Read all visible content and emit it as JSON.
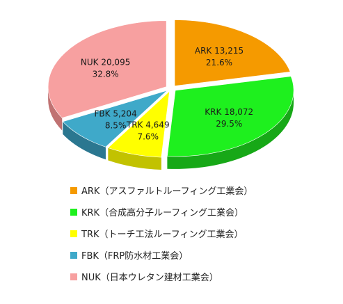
{
  "chart_data": {
    "type": "pie",
    "style": "3d-exploded",
    "legend_position": "bottom",
    "title": "",
    "slices": [
      {
        "key": "ARK",
        "value": 13215,
        "value_label": "13,215",
        "percent": "21.6%",
        "legend": "ARK（アスファルトルーフィング工業会）",
        "color": "#f59a00",
        "side_color": "#b87300"
      },
      {
        "key": "KRK",
        "value": 18072,
        "value_label": "18,072",
        "percent": "29.5%",
        "legend": "KRK（合成高分子ルーフィング工業会）",
        "color": "#1ef01e",
        "side_color": "#17a817"
      },
      {
        "key": "TRK",
        "value": 4649,
        "value_label": "4,649",
        "percent": "7.6%",
        "legend": "TRK（トーチ工法ルーフィング工業会）",
        "color": "#ffff00",
        "side_color": "#c2c200"
      },
      {
        "key": "FBK",
        "value": 5204,
        "value_label": "5,204",
        "percent": "8.5%",
        "legend": "FBK（FRP防水材工業会）",
        "color": "#3fa9c9",
        "side_color": "#2b7790"
      },
      {
        "key": "NUK",
        "value": 20095,
        "value_label": "20,095",
        "percent": "32.8%",
        "legend": "NUK（日本ウレタン建材工業会）",
        "color": "#f7a0a0",
        "side_color": "#c07272"
      }
    ]
  }
}
